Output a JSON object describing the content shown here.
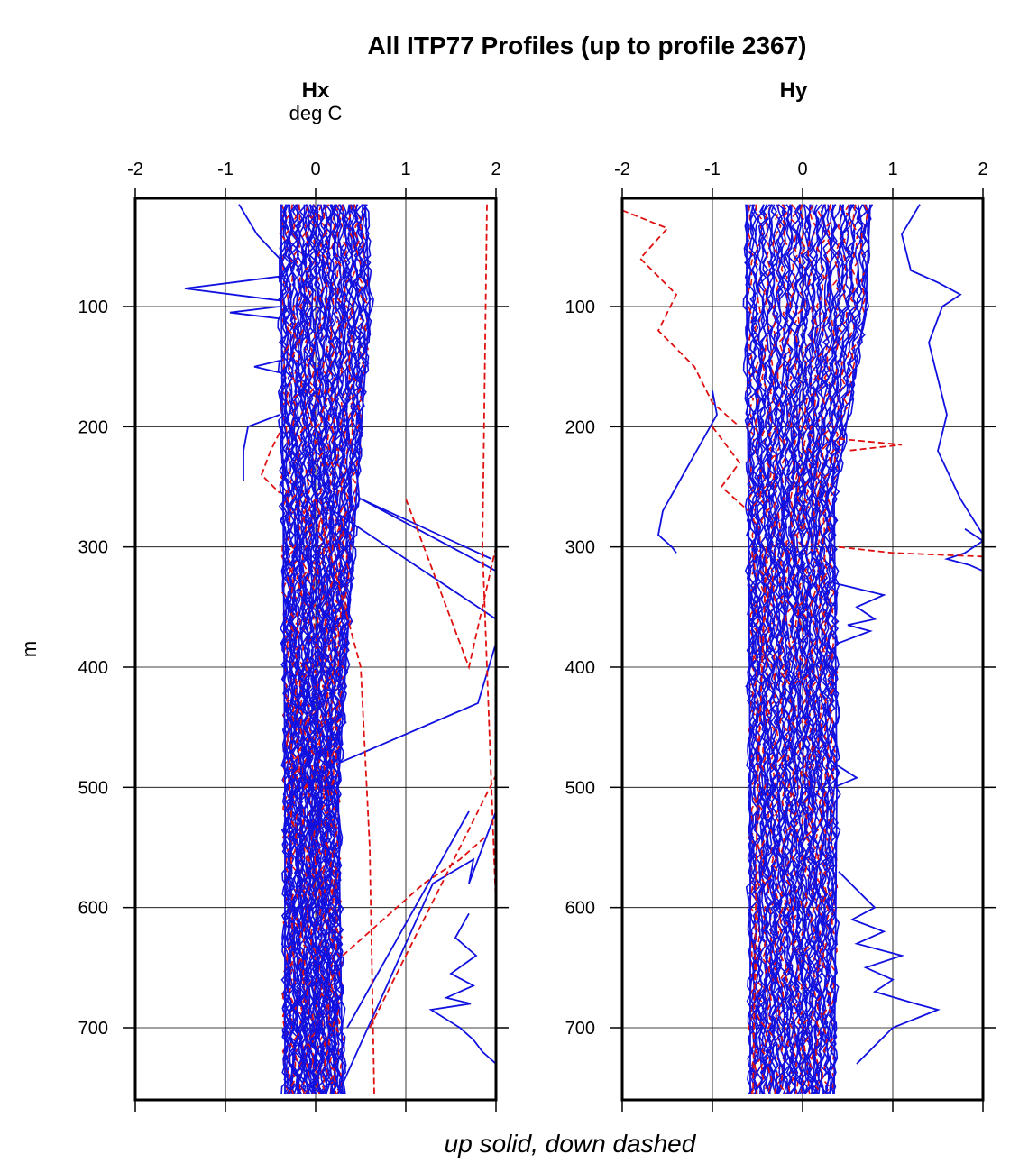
{
  "chart_data": {
    "type": "line",
    "title": "All ITP77 Profiles (up to profile 2367)",
    "xlabel": "up solid, down dashed",
    "ylabel": "m",
    "legend": "up solid, down dashed",
    "colors": {
      "up": "#1010e0",
      "down": "#e01010",
      "axes": "#000000",
      "grid": "#000000"
    },
    "panels": [
      {
        "name": "Hx",
        "units": "deg C",
        "xlim": [
          -2,
          2
        ],
        "ylim": [
          760,
          10
        ],
        "xticks": [
          -2,
          -1,
          0,
          1,
          2
        ],
        "yticks": [
          100,
          200,
          300,
          400,
          500,
          600,
          700
        ],
        "grid": true,
        "series": [
          {
            "line": "up",
            "style": "solid",
            "x": [
              -0.38,
              -0.38,
              -0.36,
              -0.34,
              -0.34
            ],
            "y": [
              15,
              100,
              260,
              500,
              755
            ]
          },
          {
            "line": "up",
            "style": "solid",
            "x": [
              0.55,
              0.6,
              0.45,
              0.25,
              0.3
            ],
            "y": [
              15,
              100,
              260,
              500,
              755
            ]
          },
          {
            "line": "up",
            "style": "solid",
            "x": [
              -0.85,
              -0.65,
              -0.4,
              -0.4
            ],
            "y": [
              15,
              40,
              60,
              80
            ]
          },
          {
            "line": "up",
            "style": "solid",
            "x": [
              -0.4,
              -1.45,
              -0.4
            ],
            "y": [
              75,
              85,
              95
            ]
          },
          {
            "line": "up",
            "style": "solid",
            "x": [
              -0.4,
              -0.95,
              -0.4
            ],
            "y": [
              100,
              105,
              110
            ]
          },
          {
            "line": "up",
            "style": "solid",
            "x": [
              -0.4,
              -0.68,
              -0.4
            ],
            "y": [
              145,
              150,
              155
            ]
          },
          {
            "line": "up",
            "style": "solid",
            "x": [
              -0.4,
              -0.75,
              -0.8,
              -0.8
            ],
            "y": [
              190,
              200,
              220,
              245
            ]
          },
          {
            "line": "up",
            "style": "solid",
            "x": [
              0.5,
              1.95
            ],
            "y": [
              260,
              310
            ]
          },
          {
            "line": "up",
            "style": "solid",
            "x": [
              0.5,
              2.0
            ],
            "y": [
              260,
              320
            ]
          },
          {
            "line": "up",
            "style": "solid",
            "x": [
              0.2,
              2.0
            ],
            "y": [
              270,
              360
            ]
          },
          {
            "line": "up",
            "style": "solid",
            "x": [
              0.25,
              1.8,
              2.0
            ],
            "y": [
              480,
              430,
              380
            ]
          },
          {
            "line": "up",
            "style": "solid",
            "x": [
              0.35,
              1.7
            ],
            "y": [
              700,
              520
            ]
          },
          {
            "line": "up",
            "style": "solid",
            "x": [
              0.25,
              1.3,
              1.75,
              1.7,
              2.0
            ],
            "y": [
              755,
              580,
              560,
              580,
              520
            ]
          },
          {
            "line": "up",
            "style": "solid",
            "x": [
              1.7,
              1.55,
              1.78,
              1.5,
              1.75,
              1.45,
              1.72,
              1.28,
              1.6,
              1.75,
              1.85,
              2.0
            ],
            "y": [
              605,
              625,
              640,
              655,
              665,
              675,
              680,
              685,
              700,
              710,
              720,
              730
            ]
          },
          {
            "line": "down",
            "style": "dashed",
            "x": [
              -0.4,
              -0.5,
              -0.6,
              -0.4
            ],
            "y": [
              205,
              220,
              240,
              255
            ]
          },
          {
            "line": "down",
            "style": "dashed",
            "x": [
              0.0,
              0.5,
              0.6,
              0.65
            ],
            "y": [
              260,
              400,
              550,
              755
            ]
          },
          {
            "line": "down",
            "style": "dashed",
            "x": [
              0.6,
              2.0
            ],
            "y": [
              700,
              490
            ]
          },
          {
            "line": "down",
            "style": "dashed",
            "x": [
              1.9,
              1.85,
              2.0
            ],
            "y": [
              15,
              300,
              600
            ]
          },
          {
            "line": "down",
            "style": "dashed",
            "x": [
              1.0,
              1.7,
              2.0
            ],
            "y": [
              260,
              400,
              300
            ]
          },
          {
            "line": "down",
            "style": "dashed",
            "x": [
              0.3,
              1.2,
              1.6,
              1.9
            ],
            "y": [
              640,
              580,
              560,
              540
            ]
          }
        ]
      },
      {
        "name": "Hy",
        "units": "",
        "xlim": [
          -2,
          2
        ],
        "ylim": [
          760,
          10
        ],
        "xticks": [
          -2,
          -1,
          0,
          1,
          2
        ],
        "yticks": [
          100,
          200,
          300,
          400,
          500,
          600,
          700
        ],
        "grid": true,
        "series": [
          {
            "line": "up",
            "style": "solid",
            "x": [
              -0.62,
              -0.62,
              -0.6,
              -0.58,
              -0.58
            ],
            "y": [
              15,
              100,
              260,
              500,
              755
            ]
          },
          {
            "line": "up",
            "style": "solid",
            "x": [
              0.75,
              0.7,
              0.35,
              0.38,
              0.35
            ],
            "y": [
              15,
              100,
              260,
              500,
              755
            ]
          },
          {
            "line": "up",
            "style": "solid",
            "x": [
              -1.0,
              -0.95,
              -1.1,
              -1.25,
              -1.4,
              -1.55,
              -1.6,
              -1.45,
              -1.4
            ],
            "y": [
              170,
              190,
              210,
              230,
              250,
              270,
              290,
              300,
              305
            ]
          },
          {
            "line": "up",
            "style": "solid",
            "x": [
              1.3,
              1.1,
              1.2,
              1.5,
              1.75,
              1.55,
              1.4,
              1.5,
              1.6,
              1.5,
              1.75,
              2.0
            ],
            "y": [
              15,
              40,
              70,
              80,
              90,
              100,
              130,
              160,
              190,
              220,
              260,
              290
            ]
          },
          {
            "line": "up",
            "style": "solid",
            "x": [
              1.8,
              2.0,
              1.8,
              1.6,
              1.85,
              2.0
            ],
            "y": [
              285,
              295,
              305,
              310,
              315,
              320
            ]
          },
          {
            "line": "up",
            "style": "solid",
            "x": [
              0.35,
              0.9,
              0.6,
              0.8,
              0.5,
              0.75,
              0.4
            ],
            "y": [
              330,
              340,
              350,
              360,
              365,
              370,
              380
            ]
          },
          {
            "line": "up",
            "style": "solid",
            "x": [
              0.35,
              0.6,
              0.35
            ],
            "y": [
              480,
              492,
              500
            ]
          },
          {
            "line": "up",
            "style": "solid",
            "x": [
              0.4,
              0.8,
              0.55,
              0.9,
              0.6,
              1.1,
              0.7,
              1.0,
              0.8,
              1.25,
              1.5,
              1.0,
              0.6
            ],
            "y": [
              570,
              600,
              610,
              620,
              630,
              640,
              650,
              660,
              670,
              680,
              685,
              700,
              730
            ]
          },
          {
            "line": "down",
            "style": "dashed",
            "x": [
              -2.0,
              -1.5,
              -1.8,
              -1.4,
              -1.6,
              -1.2,
              -1.0,
              -0.7
            ],
            "y": [
              20,
              35,
              60,
              90,
              120,
              150,
              180,
              200
            ]
          },
          {
            "line": "down",
            "style": "dashed",
            "x": [
              -1.0,
              -0.7,
              -0.9,
              -0.6
            ],
            "y": [
              200,
              230,
              250,
              270
            ]
          },
          {
            "line": "down",
            "style": "dashed",
            "x": [
              0.4,
              1.0,
              2.0
            ],
            "y": [
              300,
              305,
              308
            ]
          },
          {
            "line": "down",
            "style": "dashed",
            "x": [
              0.4,
              1.1,
              0.5
            ],
            "y": [
              210,
              215,
              220
            ]
          },
          {
            "line": "down",
            "style": "dashed",
            "x": [
              -0.4,
              -0.5,
              -0.55
            ],
            "y": [
              300,
              500,
              755
            ]
          }
        ]
      }
    ]
  }
}
